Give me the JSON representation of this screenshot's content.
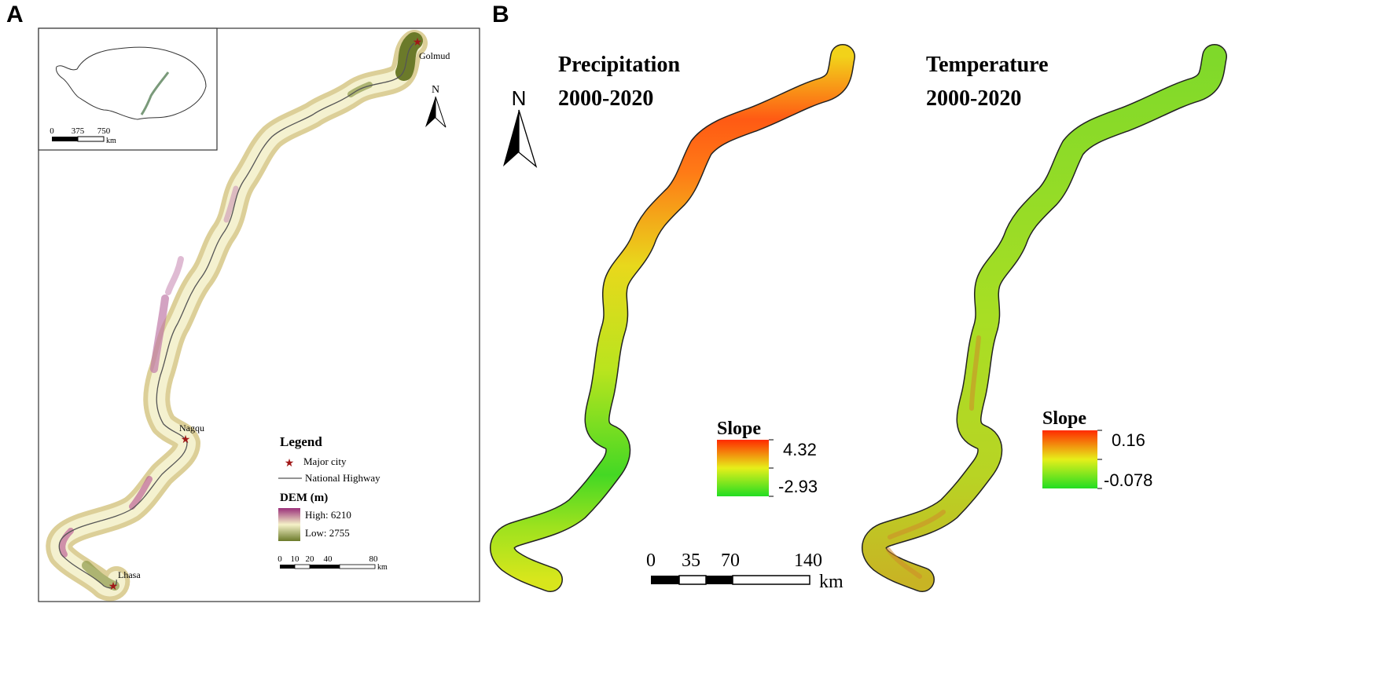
{
  "panels": [
    {
      "letter": "A"
    },
    {
      "letter": "B"
    }
  ],
  "panel_a": {
    "cities": [
      {
        "name": "Golmud"
      },
      {
        "name": "Nagqu"
      },
      {
        "name": "Lhasa"
      }
    ],
    "north_label": "N",
    "inset_scale": {
      "ticks": [
        "0",
        "375",
        "750"
      ],
      "unit": "km"
    },
    "legend": {
      "title": "Legend",
      "city_label": "Major city",
      "highway_label": "National Highway",
      "dem_title": "DEM (m)",
      "dem_high": "High: 6210",
      "dem_low": "Low: 2755",
      "colors": {
        "high": "#9b2f7a",
        "mid": "#f5f2c8",
        "low": "#6b7a2a"
      }
    },
    "scale": {
      "ticks": [
        "0",
        "10",
        "20",
        "40",
        "80"
      ],
      "unit": "km"
    }
  },
  "panel_b": {
    "north_label": "N",
    "maps": [
      {
        "title_line1": "Precipitation",
        "title_line2": "2000-2020",
        "legend_title": "Slope",
        "max": "4.32",
        "min": "-2.93"
      },
      {
        "title_line1": "Temperature",
        "title_line2": "2000-2020",
        "legend_title": "Slope",
        "max": "0.16",
        "min": "-0.078"
      }
    ],
    "scale": {
      "ticks": [
        "0",
        "35",
        "70",
        "140"
      ],
      "unit": "km"
    },
    "colors": {
      "high": "#ff2a00",
      "mid": "#e6ef1a",
      "low": "#22dd22"
    }
  }
}
